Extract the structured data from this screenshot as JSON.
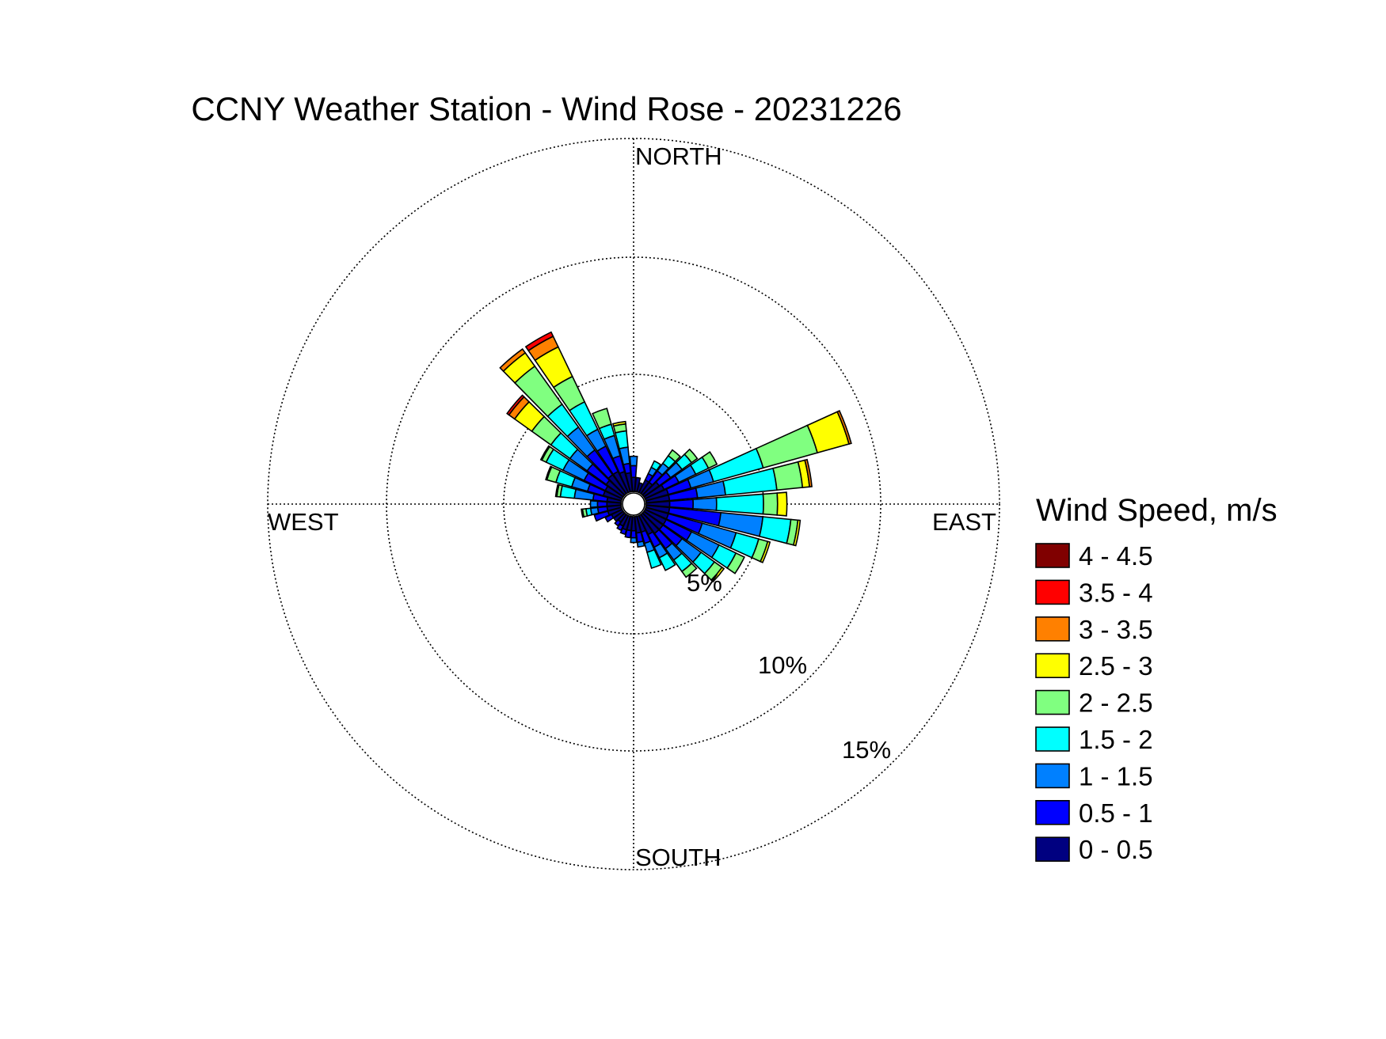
{
  "chart_data": {
    "type": "wind_rose",
    "title": "CCNY Weather Station - Wind Rose - 20231226",
    "direction_labels": {
      "north": "NORTH",
      "east": "EAST",
      "south": "SOUTH",
      "west": "WEST"
    },
    "radial_unit": "%",
    "radial_rings": [
      5,
      10,
      15
    ],
    "ring_labels": [
      "5%",
      "10%",
      "15%"
    ],
    "radial_max": 15.5,
    "sector_count": 36,
    "legend": {
      "title": "Wind Speed, m/s",
      "bins": [
        {
          "label": "4 - 4.5",
          "color": "#800000"
        },
        {
          "label": "3.5 - 4",
          "color": "#ff0000"
        },
        {
          "label": "3 - 3.5",
          "color": "#ff8000"
        },
        {
          "label": "2.5 - 3",
          "color": "#ffff00"
        },
        {
          "label": "2 - 2.5",
          "color": "#80ff80"
        },
        {
          "label": "1.5 - 2",
          "color": "#00ffff"
        },
        {
          "label": "1 - 1.5",
          "color": "#0080ff"
        },
        {
          "label": "0.5 - 1",
          "color": "#0000ff"
        },
        {
          "label": "0 - 0.5",
          "color": "#000080"
        }
      ]
    },
    "bin_order_from_center": [
      "0 - 0.5",
      "0.5 - 1",
      "1 - 1.5",
      "1.5 - 2",
      "2 - 2.5",
      "2.5 - 3",
      "3 - 3.5",
      "3.5 - 4",
      "4 - 4.5"
    ],
    "sectors": [
      {
        "dir": 0,
        "cumulative": [
          0.6,
          1.1,
          1.5
        ]
      },
      {
        "dir": 10,
        "cumulative": [
          0.6
        ]
      },
      {
        "dir": 20,
        "cumulative": [
          0.4
        ]
      },
      {
        "dir": 30,
        "cumulative": [
          0.6,
          0.9,
          1.2,
          1.5
        ]
      },
      {
        "dir": 40,
        "cumulative": [
          0.6,
          1.2,
          1.6,
          2.0,
          2.3
        ]
      },
      {
        "dir": 50,
        "cumulative": [
          0.8,
          1.4,
          2.0,
          2.5,
          2.8
        ]
      },
      {
        "dir": 60,
        "cumulative": [
          0.9,
          1.6,
          2.4,
          3.0,
          3.4
        ]
      },
      {
        "dir": 70,
        "cumulative": [
          1.0,
          2.0,
          3.0,
          5.2,
          7.6,
          9.0,
          9.1
        ]
      },
      {
        "dir": 80,
        "cumulative": [
          1.0,
          2.2,
          3.4,
          5.6,
          6.7,
          7.0,
          7.1
        ]
      },
      {
        "dir": 90,
        "cumulative": [
          1.0,
          2.0,
          3.0,
          5.0,
          5.6,
          6.0
        ]
      },
      {
        "dir": 100,
        "cumulative": [
          1.0,
          3.2,
          5.0,
          6.2,
          6.5,
          6.6
        ]
      },
      {
        "dir": 110,
        "cumulative": [
          1.0,
          2.5,
          4.0,
          5.0,
          5.4,
          5.5
        ]
      },
      {
        "dir": 120,
        "cumulative": [
          1.0,
          2.2,
          3.5,
          4.3,
          4.7
        ]
      },
      {
        "dir": 130,
        "cumulative": [
          1.0,
          2.0,
          3.0,
          3.7,
          4.1,
          4.2
        ]
      },
      {
        "dir": 140,
        "cumulative": [
          1.0,
          1.8,
          2.4,
          3.0,
          3.3
        ]
      },
      {
        "dir": 150,
        "cumulative": [
          0.9,
          1.5,
          2.0,
          2.6
        ]
      },
      {
        "dir": 160,
        "cumulative": [
          0.7,
          1.2,
          1.6,
          2.3
        ]
      },
      {
        "dir": 170,
        "cumulative": [
          0.7,
          1.1,
          1.3
        ]
      },
      {
        "dir": 180,
        "cumulative": [
          0.6,
          0.9,
          1.1
        ]
      },
      {
        "dir": 190,
        "cumulative": [
          0.6,
          0.9
        ]
      },
      {
        "dir": 200,
        "cumulative": [
          0.6,
          0.8
        ]
      },
      {
        "dir": 210,
        "cumulative": [
          0.5,
          0.7
        ]
      },
      {
        "dir": 220,
        "cumulative": [
          0.4,
          0.6
        ]
      },
      {
        "dir": 230,
        "cumulative": [
          0.5
        ]
      },
      {
        "dir": 240,
        "cumulative": [
          0.5,
          0.8
        ]
      },
      {
        "dir": 250,
        "cumulative": [
          0.6,
          1.2
        ]
      },
      {
        "dir": 260,
        "cumulative": [
          0.6,
          1.0,
          1.3,
          1.5,
          1.65,
          1.7
        ]
      },
      {
        "dir": 270,
        "cumulative": [
          0.6,
          1.0,
          1.3
        ]
      },
      {
        "dir": 280,
        "cumulative": [
          0.6,
          1.2,
          2.0,
          2.6,
          2.75,
          2.8
        ]
      },
      {
        "dir": 290,
        "cumulative": [
          0.8,
          1.5,
          2.2,
          2.9,
          3.3,
          3.35
        ]
      },
      {
        "dir": 300,
        "cumulative": [
          0.8,
          1.8,
          2.8,
          3.6,
          3.8,
          3.85
        ]
      },
      {
        "dir": 310,
        "cumulative": [
          0.9,
          1.9,
          2.8,
          3.8,
          4.8,
          5.7,
          6.0,
          6.1
        ]
      },
      {
        "dir": 320,
        "cumulative": [
          1.0,
          2.3,
          3.5,
          4.7,
          6.7,
          7.4,
          7.6
        ]
      },
      {
        "dir": 330,
        "cumulative": [
          1.0,
          2.2,
          3.0,
          4.3,
          5.5,
          6.9,
          7.4,
          7.6
        ]
      },
      {
        "dir": 340,
        "cumulative": [
          0.9,
          1.6,
          2.5,
          3.0,
          3.7
        ]
      },
      {
        "dir": 350,
        "cumulative": [
          0.8,
          1.2,
          1.9,
          2.6,
          2.9,
          3.0
        ]
      }
    ]
  }
}
